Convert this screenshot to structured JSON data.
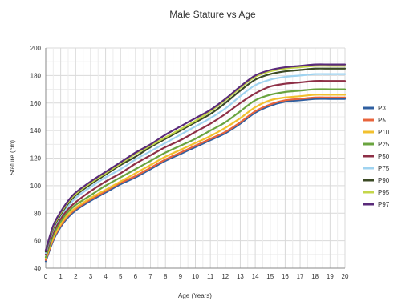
{
  "chart_data": {
    "type": "line",
    "title": "Male Stature vs Age",
    "xlabel": "Age (Years)",
    "ylabel": "Stature (cm)",
    "xlim": [
      0,
      20
    ],
    "ylim": [
      40,
      200
    ],
    "x_ticks": [
      0,
      1,
      2,
      3,
      4,
      5,
      6,
      7,
      8,
      9,
      10,
      11,
      12,
      13,
      14,
      15,
      16,
      17,
      18,
      19,
      20
    ],
    "y_ticks": [
      40,
      60,
      80,
      100,
      120,
      140,
      160,
      180,
      200
    ],
    "grid": true,
    "legend_position": "right",
    "x": [
      0,
      0.5,
      1,
      1.5,
      2,
      3,
      4,
      5,
      6,
      7,
      8,
      9,
      10,
      11,
      12,
      13,
      14,
      15,
      16,
      17,
      18,
      19,
      20
    ],
    "series": [
      {
        "name": "P3",
        "color": "#2f5fa0",
        "values": [
          45,
          60,
          70,
          77,
          82,
          89,
          95,
          101,
          106,
          112,
          118,
          123,
          128,
          133,
          138,
          145,
          153,
          158,
          161,
          162,
          163,
          163,
          163
        ]
      },
      {
        "name": "P5",
        "color": "#e8643c",
        "values": [
          46,
          61,
          71,
          78,
          83,
          90,
          96,
          102,
          107,
          113,
          119,
          124,
          129,
          134,
          139,
          146,
          154,
          159,
          162,
          163,
          164,
          164,
          164
        ]
      },
      {
        "name": "P10",
        "color": "#f2c02e",
        "values": [
          47,
          62,
          72,
          79,
          84,
          91,
          97,
          103,
          109,
          115,
          121,
          126,
          131,
          136,
          142,
          149,
          157,
          162,
          164,
          165,
          166,
          166,
          166
        ]
      },
      {
        "name": "P25",
        "color": "#6aa43f",
        "values": [
          48,
          64,
          74,
          81,
          86,
          93,
          100,
          106,
          112,
          118,
          124,
          129,
          134,
          140,
          146,
          154,
          162,
          166,
          168,
          169,
          170,
          170,
          170
        ]
      },
      {
        "name": "P50",
        "color": "#8e2f46",
        "values": [
          50,
          66,
          76,
          83,
          88,
          96,
          103,
          109,
          116,
          122,
          128,
          133,
          139,
          145,
          152,
          160,
          167,
          172,
          174,
          175,
          176,
          176,
          176
        ]
      },
      {
        "name": "P75",
        "color": "#9fd3f0",
        "values": [
          51,
          68,
          78,
          85,
          91,
          99,
          106,
          112,
          119,
          125,
          131,
          137,
          143,
          149,
          156,
          165,
          173,
          177,
          179,
          180,
          181,
          181,
          181
        ]
      },
      {
        "name": "P90",
        "color": "#3b4a24",
        "values": [
          52,
          69,
          79,
          87,
          93,
          101,
          108,
          115,
          121,
          128,
          134,
          140,
          146,
          152,
          160,
          169,
          177,
          181,
          183,
          184,
          185,
          185,
          185
        ]
      },
      {
        "name": "P95",
        "color": "#c4d64a",
        "values": [
          53,
          70,
          80,
          88,
          94,
          102,
          109,
          116,
          123,
          129,
          135,
          141,
          147,
          154,
          162,
          171,
          179,
          183,
          185,
          186,
          187,
          187,
          187
        ]
      },
      {
        "name": "P97",
        "color": "#5a2a7a",
        "values": [
          53,
          71,
          81,
          89,
          95,
          103,
          110,
          117,
          124,
          130,
          137,
          143,
          149,
          155,
          163,
          172,
          180,
          184,
          186,
          187,
          188,
          188,
          188
        ]
      }
    ]
  }
}
